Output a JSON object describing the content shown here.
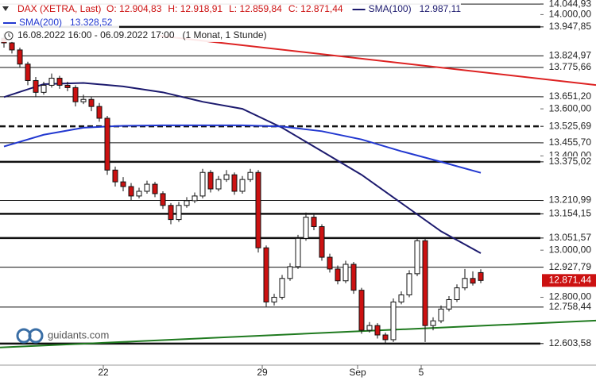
{
  "chart_data": {
    "type": "candlestick",
    "title": "DAX (XETRA, Last)",
    "ohlc_labels": [
      "O: 12.904,83",
      "H: 12.918,91",
      "L: 12.859,84",
      "C: 12.871,44"
    ],
    "range_text": "16.08.2022 16:00 - 06.09.2022 17:00",
    "period_text": "(1 Monat, 1 Stunde)",
    "watermark": "guidants.com",
    "title_color": "#cc1111",
    "up_color": "#ffffff",
    "down_color": "#cc1111",
    "xlim": [
      -0.5,
      67.5
    ],
    "ylim": [
      12512,
      14062
    ],
    "xticks": [
      {
        "value": 12.5,
        "label": "22"
      },
      {
        "value": 32.5,
        "label": "29"
      },
      {
        "value": 44.5,
        "label": "Sep"
      },
      {
        "value": 52.5,
        "label": "5"
      }
    ],
    "yticks": [
      {
        "value": 14000,
        "label": "14.000,00"
      },
      {
        "value": 13600,
        "label": "13.600,00"
      },
      {
        "value": 13400,
        "label": "13.400,00"
      },
      {
        "value": 13000,
        "label": "13.000,00"
      },
      {
        "value": 12800,
        "label": "12.800,00"
      }
    ],
    "candles": {
      "open": [
        13900,
        13880,
        13850,
        13790,
        13720,
        13670,
        13700,
        13730,
        13700,
        13690,
        13630,
        13640,
        13610,
        13560,
        13340,
        13290,
        13270,
        13230,
        13250,
        13280,
        13240,
        13190,
        13130,
        13190,
        13210,
        13230,
        13330,
        13260,
        13300,
        13320,
        13250,
        13300,
        13330,
        13010,
        12780,
        12800,
        12880,
        12930,
        13050,
        13140,
        13100,
        12970,
        12920,
        12870,
        12940,
        12830,
        12660,
        12680,
        12640,
        12620,
        12780,
        12810,
        12900,
        13040,
        12680,
        12700,
        12750,
        12790,
        12840,
        12880,
        12904.83
      ],
      "high": [
        13920,
        13895,
        13860,
        13800,
        13735,
        13715,
        13750,
        13740,
        13715,
        13700,
        13660,
        13650,
        13625,
        13570,
        13355,
        13310,
        13285,
        13265,
        13295,
        13290,
        13250,
        13200,
        13205,
        13225,
        13245,
        13345,
        13340,
        13315,
        13340,
        13330,
        13315,
        13345,
        13340,
        13020,
        12815,
        12895,
        12945,
        13065,
        13160,
        13150,
        13110,
        12985,
        12935,
        12955,
        12950,
        12840,
        12695,
        12690,
        12650,
        12795,
        12825,
        12915,
        13055,
        13050,
        12715,
        12765,
        12805,
        12855,
        12920,
        12910,
        12918.91
      ],
      "low": [
        13860,
        13835,
        13775,
        13700,
        13650,
        13660,
        13690,
        13685,
        13675,
        13610,
        13620,
        13590,
        13545,
        13320,
        13270,
        13250,
        13210,
        13220,
        13240,
        13225,
        13175,
        13110,
        13120,
        13180,
        13200,
        13220,
        13245,
        13250,
        13290,
        13235,
        13240,
        13290,
        12990,
        12760,
        12765,
        12790,
        12870,
        12920,
        13040,
        13085,
        12955,
        12905,
        12855,
        12860,
        12815,
        12645,
        12650,
        12625,
        12600,
        12610,
        12770,
        12800,
        12890,
        12610,
        12660,
        12690,
        12740,
        12780,
        12830,
        12850,
        12859.84
      ],
      "close": [
        13880,
        13850,
        13790,
        13720,
        13670,
        13700,
        13730,
        13700,
        13690,
        13630,
        13640,
        13610,
        13560,
        13340,
        13290,
        13270,
        13230,
        13250,
        13280,
        13240,
        13190,
        13130,
        13190,
        13210,
        13230,
        13330,
        13260,
        13300,
        13320,
        13250,
        13300,
        13330,
        13010,
        12780,
        12800,
        12880,
        12930,
        13050,
        13140,
        13100,
        12970,
        12920,
        12870,
        12940,
        12830,
        12660,
        12680,
        12640,
        12620,
        12780,
        12810,
        12900,
        13040,
        12680,
        12700,
        12750,
        12790,
        12840,
        12880,
        12860,
        12871.44
      ]
    },
    "last_label": "12.871,44",
    "series": [
      {
        "name": "SMA(100)",
        "value_label": "12.987,11",
        "color": "#1c1a6e",
        "x": [
          0,
          5,
          10,
          15,
          20,
          25,
          30,
          35,
          40,
          45,
          50,
          55,
          60
        ],
        "values": [
          13650,
          13705,
          13710,
          13695,
          13670,
          13630,
          13600,
          13520,
          13420,
          13320,
          13200,
          13080,
          12987.11
        ]
      },
      {
        "name": "SMA(200)",
        "value_label": "13.328,52",
        "color": "#2238d0",
        "x": [
          0,
          5,
          10,
          15,
          20,
          25,
          30,
          35,
          40,
          45,
          50,
          55,
          60
        ],
        "values": [
          13440,
          13490,
          13520,
          13528,
          13530,
          13530,
          13530,
          13525,
          13505,
          13470,
          13420,
          13375,
          13328.52
        ]
      }
    ],
    "trendlines": [
      {
        "color": "#dd2222",
        "x": [
          19.5,
          74.5
        ],
        "values": [
          13910,
          13701
        ]
      },
      {
        "color": "#1f7a1f",
        "x": [
          -0.5,
          74.5
        ],
        "values": [
          12587,
          12701
        ]
      }
    ],
    "levels": [
      {
        "value": 14044.93,
        "label": "14.044,93",
        "style": "thin"
      },
      {
        "value": 13947.85,
        "label": "13.947,85",
        "style": "thick"
      },
      {
        "value": 13824.97,
        "label": "13.824,97",
        "style": "thin"
      },
      {
        "value": 13775.66,
        "label": "13.775,66",
        "style": "thin"
      },
      {
        "value": 13651.2,
        "label": "13.651,20",
        "style": "thin"
      },
      {
        "value": 13525.69,
        "label": "13.525,69",
        "style": "dashed"
      },
      {
        "value": 13455.7,
        "label": "13.455,70",
        "style": "thin"
      },
      {
        "value": 13375.02,
        "label": "13.375,02",
        "style": "thick"
      },
      {
        "value": 13210.99,
        "label": "13.210,99",
        "style": "thin"
      },
      {
        "value": 13154.15,
        "label": "13.154,15",
        "style": "thick"
      },
      {
        "value": 13051.57,
        "label": "13.051,57",
        "style": "thick"
      },
      {
        "value": 12927.79,
        "label": "12.927,79",
        "style": "thin"
      },
      {
        "value": 12758.44,
        "label": "12.758,44",
        "style": "thin"
      },
      {
        "value": 12603.58,
        "label": "12.603,58",
        "style": "thick"
      }
    ]
  }
}
